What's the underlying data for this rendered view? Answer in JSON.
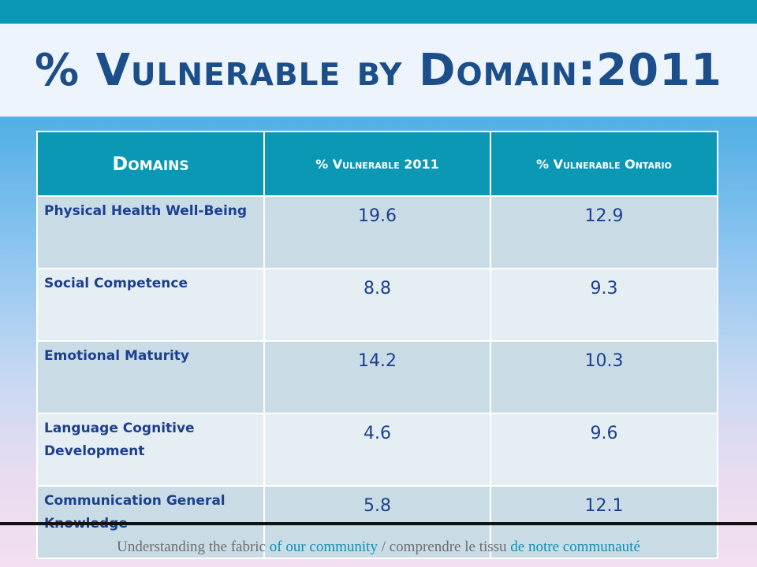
{
  "slide": {
    "title": "% Vulnerable by Domain:2011"
  },
  "table": {
    "headers": [
      "Domains",
      "% Vulnerable 2011",
      "% Vulnerable Ontario"
    ],
    "rows": [
      {
        "domain": "Physical Health Well-Being",
        "v2011": "19.6",
        "ontario": "12.9"
      },
      {
        "domain": "Social Competence",
        "v2011": "8.8",
        "ontario": "9.3"
      },
      {
        "domain": "Emotional Maturity",
        "v2011": "14.2",
        "ontario": "10.3"
      },
      {
        "domain": "Language Cognitive Development",
        "v2011": "4.6",
        "ontario": "9.6"
      },
      {
        "domain": "Communication General Knowledge",
        "v2011": "5.8",
        "ontario": "12.1"
      }
    ]
  },
  "footer": {
    "part1": "Understanding the fabric ",
    "part2": "of our community",
    "part3": " / comprendre le tissu ",
    "part4": "de notre communauté"
  },
  "colors": {
    "accent": "#0a98b4",
    "title_text": "#1c4f8a",
    "row_dark": "#c9dce6",
    "row_light": "#e5eef3"
  }
}
